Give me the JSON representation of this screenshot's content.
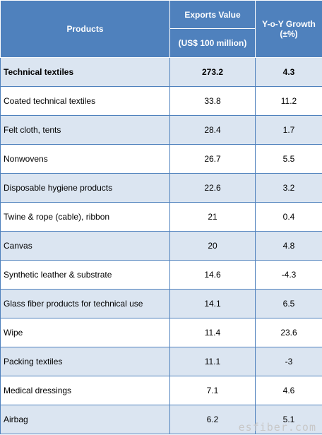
{
  "table": {
    "headers": {
      "products": "Products",
      "exports_value": "Exports Value",
      "exports_unit": "(US$ 100 million)",
      "growth": "Y-o-Y Growth",
      "growth_unit": "(±%)"
    },
    "rows": [
      {
        "product": "Technical textiles",
        "value": "273.2",
        "growth": "4.3"
      },
      {
        "product": "Coated technical textiles",
        "value": "33.8",
        "growth": "11.2"
      },
      {
        "product": "Felt cloth, tents",
        "value": "28.4",
        "growth": "1.7"
      },
      {
        "product": "Nonwovens",
        "value": "26.7",
        "growth": "5.5"
      },
      {
        "product": "Disposable hygiene products",
        "value": "22.6",
        "growth": "3.2"
      },
      {
        "product": "Twine & rope (cable), ribbon",
        "value": "21",
        "growth": "0.4"
      },
      {
        "product": "Canvas",
        "value": "20",
        "growth": "4.8"
      },
      {
        "product": "Synthetic leather & substrate",
        "value": "14.6",
        "growth": "-4.3"
      },
      {
        "product": "Glass fiber products for technical use",
        "value": "14.1",
        "growth": "6.5"
      },
      {
        "product": "Wipe",
        "value": "11.4",
        "growth": "23.6"
      },
      {
        "product": "Packing textiles",
        "value": "11.1",
        "growth": "-3"
      },
      {
        "product": "Medical dressings",
        "value": "7.1",
        "growth": "4.6"
      },
      {
        "product": "Airbag",
        "value": "6.2",
        "growth": "5.1"
      }
    ]
  },
  "watermark": "esfiber.com",
  "colors": {
    "header_bg": "#4f81bd",
    "row_alt_bg": "#dbe5f1",
    "border": "#4f81bd"
  }
}
